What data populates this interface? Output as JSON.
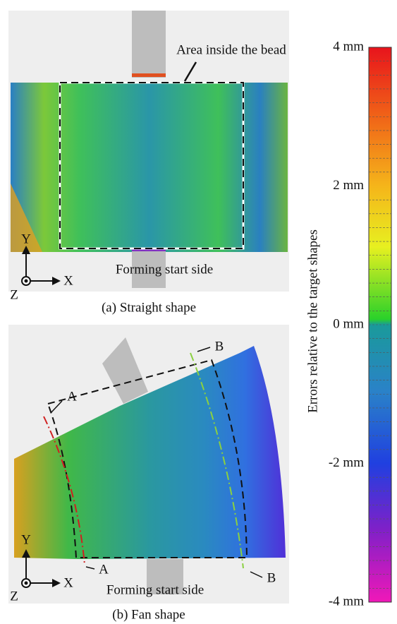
{
  "panels": [
    {
      "annotation": "Area inside the bead",
      "bottom_label": "Forming start side",
      "axis_labels": [
        "Y",
        "X",
        "Z"
      ],
      "caption": "(a) Straight shape"
    },
    {
      "section_labels": [
        "A",
        "A",
        "B",
        "B"
      ],
      "bottom_label": "Forming start side",
      "axis_labels": [
        "Y",
        "X",
        "Z"
      ],
      "caption": "(b) Fan shape"
    }
  ],
  "colorbar": {
    "title": "Errors relative to the target shapes",
    "labels": [
      "4 mm",
      "2 mm",
      "0 mm",
      "-2 mm",
      "-4 mm"
    ]
  }
}
